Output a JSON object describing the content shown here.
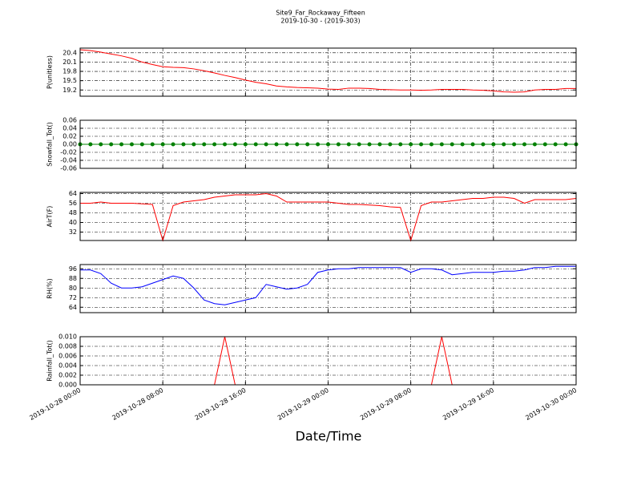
{
  "chart_data": [
    {
      "type": "line",
      "title": "Site9_Far_Rockaway_Fifteen",
      "subtitle": "2019-10-30 - (2019-303)",
      "ylabel": "P(unitless)",
      "x": [
        "2019-10-28 00:00",
        "2019-10-28 01:00",
        "2019-10-28 02:00",
        "2019-10-28 03:00",
        "2019-10-28 04:00",
        "2019-10-28 05:00",
        "2019-10-28 06:00",
        "2019-10-28 07:00",
        "2019-10-28 08:00",
        "2019-10-28 09:00",
        "2019-10-28 10:00",
        "2019-10-28 11:00",
        "2019-10-28 12:00",
        "2019-10-28 13:00",
        "2019-10-28 14:00",
        "2019-10-28 15:00",
        "2019-10-28 16:00",
        "2019-10-28 17:00",
        "2019-10-28 18:00",
        "2019-10-28 19:00",
        "2019-10-28 20:00",
        "2019-10-28 21:00",
        "2019-10-28 22:00",
        "2019-10-28 23:00",
        "2019-10-29 00:00",
        "2019-10-29 01:00",
        "2019-10-29 02:00",
        "2019-10-29 03:00",
        "2019-10-29 04:00",
        "2019-10-29 05:00",
        "2019-10-29 06:00",
        "2019-10-29 07:00",
        "2019-10-29 08:00",
        "2019-10-29 09:00",
        "2019-10-29 10:00",
        "2019-10-29 11:00",
        "2019-10-29 12:00",
        "2019-10-29 13:00",
        "2019-10-29 14:00",
        "2019-10-29 15:00",
        "2019-10-29 16:00",
        "2019-10-29 17:00",
        "2019-10-29 18:00",
        "2019-10-29 19:00",
        "2019-10-29 20:00",
        "2019-10-29 21:00",
        "2019-10-29 22:00",
        "2019-10-29 23:00",
        "2019-10-30 00:00"
      ],
      "values": [
        20.5,
        20.47,
        20.42,
        20.36,
        20.3,
        20.22,
        20.1,
        20.02,
        19.95,
        19.93,
        19.92,
        19.88,
        19.82,
        19.75,
        19.67,
        19.6,
        19.52,
        19.45,
        19.4,
        19.33,
        19.3,
        19.28,
        19.27,
        19.26,
        19.23,
        19.22,
        19.26,
        19.26,
        19.25,
        19.22,
        19.21,
        19.2,
        19.2,
        19.19,
        19.2,
        19.22,
        19.22,
        19.22,
        19.2,
        19.19,
        19.17,
        19.14,
        19.13,
        19.14,
        19.2,
        19.22,
        19.22,
        19.25,
        19.25
      ],
      "color": "#ff0000",
      "markers": false,
      "xlim": [
        "2019-10-28 00:00",
        "2019-10-30 00:00"
      ],
      "xticks": [
        "2019-10-28 00:00",
        "2019-10-28 08:00",
        "2019-10-28 16:00",
        "2019-10-29 00:00",
        "2019-10-29 08:00",
        "2019-10-29 16:00",
        "2019-10-30 00:00"
      ],
      "ylim": [
        19.0,
        20.55
      ],
      "yticks": [
        19.2,
        19.5,
        19.8,
        20.1,
        20.4
      ],
      "grid": true
    },
    {
      "type": "line",
      "ylabel": "Snowfall_Tot()",
      "x": [
        "2019-10-28 00:00",
        "2019-10-28 01:00",
        "2019-10-28 02:00",
        "2019-10-28 03:00",
        "2019-10-28 04:00",
        "2019-10-28 05:00",
        "2019-10-28 06:00",
        "2019-10-28 07:00",
        "2019-10-28 08:00",
        "2019-10-28 09:00",
        "2019-10-28 10:00",
        "2019-10-28 11:00",
        "2019-10-28 12:00",
        "2019-10-28 13:00",
        "2019-10-28 14:00",
        "2019-10-28 15:00",
        "2019-10-28 16:00",
        "2019-10-28 17:00",
        "2019-10-28 18:00",
        "2019-10-28 19:00",
        "2019-10-28 20:00",
        "2019-10-28 21:00",
        "2019-10-28 22:00",
        "2019-10-28 23:00",
        "2019-10-29 00:00",
        "2019-10-29 01:00",
        "2019-10-29 02:00",
        "2019-10-29 03:00",
        "2019-10-29 04:00",
        "2019-10-29 05:00",
        "2019-10-29 06:00",
        "2019-10-29 07:00",
        "2019-10-29 08:00",
        "2019-10-29 09:00",
        "2019-10-29 10:00",
        "2019-10-29 11:00",
        "2019-10-29 12:00",
        "2019-10-29 13:00",
        "2019-10-29 14:00",
        "2019-10-29 15:00",
        "2019-10-29 16:00",
        "2019-10-29 17:00",
        "2019-10-29 18:00",
        "2019-10-29 19:00",
        "2019-10-29 20:00",
        "2019-10-29 21:00",
        "2019-10-29 22:00",
        "2019-10-29 23:00",
        "2019-10-30 00:00"
      ],
      "values": [
        0,
        0,
        0,
        0,
        0,
        0,
        0,
        0,
        0,
        0,
        0,
        0,
        0,
        0,
        0,
        0,
        0,
        0,
        0,
        0,
        0,
        0,
        0,
        0,
        0,
        0,
        0,
        0,
        0,
        0,
        0,
        0,
        0,
        0,
        0,
        0,
        0,
        0,
        0,
        0,
        0,
        0,
        0,
        0,
        0,
        0,
        0,
        0,
        0
      ],
      "color": "#008000",
      "markers": true,
      "xlim": [
        "2019-10-28 00:00",
        "2019-10-30 00:00"
      ],
      "xticks": [
        "2019-10-28 00:00",
        "2019-10-28 08:00",
        "2019-10-28 16:00",
        "2019-10-29 00:00",
        "2019-10-29 08:00",
        "2019-10-29 16:00",
        "2019-10-30 00:00"
      ],
      "ylim": [
        -0.06,
        0.06
      ],
      "yticks": [
        -0.06,
        -0.04,
        -0.02,
        {
          "value": 0,
          "label": "0.00"
        },
        0.02,
        0.04,
        0.06
      ],
      "grid": true
    },
    {
      "type": "line",
      "ylabel": "AirT(F)",
      "x": [
        "2019-10-28 00:00",
        "2019-10-28 01:00",
        "2019-10-28 02:00",
        "2019-10-28 03:00",
        "2019-10-28 04:00",
        "2019-10-28 05:00",
        "2019-10-28 06:00",
        "2019-10-28 07:00",
        "2019-10-28 08:00",
        "2019-10-28 09:00",
        "2019-10-28 10:00",
        "2019-10-28 11:00",
        "2019-10-28 12:00",
        "2019-10-28 13:00",
        "2019-10-28 14:00",
        "2019-10-28 15:00",
        "2019-10-28 16:00",
        "2019-10-28 17:00",
        "2019-10-28 18:00",
        "2019-10-28 19:00",
        "2019-10-28 20:00",
        "2019-10-28 21:00",
        "2019-10-28 22:00",
        "2019-10-28 23:00",
        "2019-10-29 00:00",
        "2019-10-29 01:00",
        "2019-10-29 02:00",
        "2019-10-29 03:00",
        "2019-10-29 04:00",
        "2019-10-29 05:00",
        "2019-10-29 06:00",
        "2019-10-29 07:00",
        "2019-10-29 08:00",
        "2019-10-29 09:00",
        "2019-10-29 10:00",
        "2019-10-29 11:00",
        "2019-10-29 12:00",
        "2019-10-29 13:00",
        "2019-10-29 14:00",
        "2019-10-29 15:00",
        "2019-10-29 16:00",
        "2019-10-29 17:00",
        "2019-10-29 18:00",
        "2019-10-29 19:00",
        "2019-10-29 20:00",
        "2019-10-29 21:00",
        "2019-10-29 22:00",
        "2019-10-29 23:00",
        "2019-10-30 00:00"
      ],
      "values": [
        56,
        56,
        57,
        56,
        56,
        56,
        55.5,
        55,
        25,
        54,
        57,
        58,
        59,
        61,
        62,
        63,
        63,
        63,
        64,
        62,
        57,
        57,
        57,
        57,
        57,
        56,
        55,
        55,
        54.5,
        54,
        53,
        52.5,
        25,
        54,
        57,
        57,
        58,
        59,
        60,
        60,
        61,
        61,
        60,
        56,
        59,
        59,
        59,
        59,
        60
      ],
      "color": "#ff0000",
      "markers": false,
      "xlim": [
        "2019-10-28 00:00",
        "2019-10-30 00:00"
      ],
      "xticks": [
        "2019-10-28 00:00",
        "2019-10-28 08:00",
        "2019-10-28 16:00",
        "2019-10-29 00:00",
        "2019-10-29 08:00",
        "2019-10-29 16:00",
        "2019-10-30 00:00"
      ],
      "ylim": [
        25,
        65
      ],
      "yticks": [
        32,
        40,
        48,
        56,
        64
      ],
      "grid": true
    },
    {
      "type": "line",
      "ylabel": "RH(%)",
      "x": [
        "2019-10-28 00:00",
        "2019-10-28 01:00",
        "2019-10-28 02:00",
        "2019-10-28 03:00",
        "2019-10-28 04:00",
        "2019-10-28 05:00",
        "2019-10-28 06:00",
        "2019-10-28 07:00",
        "2019-10-28 08:00",
        "2019-10-28 09:00",
        "2019-10-28 10:00",
        "2019-10-28 11:00",
        "2019-10-28 12:00",
        "2019-10-28 13:00",
        "2019-10-28 14:00",
        "2019-10-28 15:00",
        "2019-10-28 16:00",
        "2019-10-28 17:00",
        "2019-10-28 18:00",
        "2019-10-28 19:00",
        "2019-10-28 20:00",
        "2019-10-28 21:00",
        "2019-10-28 22:00",
        "2019-10-28 23:00",
        "2019-10-29 00:00",
        "2019-10-29 01:00",
        "2019-10-29 02:00",
        "2019-10-29 03:00",
        "2019-10-29 04:00",
        "2019-10-29 05:00",
        "2019-10-29 06:00",
        "2019-10-29 07:00",
        "2019-10-29 08:00",
        "2019-10-29 09:00",
        "2019-10-29 10:00",
        "2019-10-29 11:00",
        "2019-10-29 12:00",
        "2019-10-29 13:00",
        "2019-10-29 14:00",
        "2019-10-29 15:00",
        "2019-10-29 16:00",
        "2019-10-29 17:00",
        "2019-10-29 18:00",
        "2019-10-29 19:00",
        "2019-10-29 20:00",
        "2019-10-29 21:00",
        "2019-10-29 22:00",
        "2019-10-29 23:00",
        "2019-10-30 00:00"
      ],
      "values": [
        95,
        95,
        92,
        84,
        80,
        80,
        81,
        84,
        87,
        90,
        88,
        80,
        70,
        67,
        66,
        68,
        70,
        72,
        83,
        81,
        79,
        80,
        83,
        93,
        95,
        96,
        96,
        97,
        97,
        97,
        97,
        97,
        93,
        96,
        96,
        95,
        91,
        92,
        93,
        93,
        93,
        94,
        94,
        95,
        97,
        97,
        98,
        98,
        98
      ],
      "color": "#0000ff",
      "markers": false,
      "xlim": [
        "2019-10-28 00:00",
        "2019-10-30 00:00"
      ],
      "xticks": [
        "2019-10-28 00:00",
        "2019-10-28 08:00",
        "2019-10-28 16:00",
        "2019-10-29 00:00",
        "2019-10-29 08:00",
        "2019-10-29 16:00",
        "2019-10-30 00:00"
      ],
      "ylim": [
        59.5,
        99.5
      ],
      "yticks": [
        64,
        72,
        80,
        88,
        96
      ],
      "grid": true
    },
    {
      "type": "line",
      "ylabel": "Rainfall_Tot()",
      "xlabel": "Date/Time",
      "x": [
        "2019-10-28 00:00",
        "2019-10-28 01:00",
        "2019-10-28 02:00",
        "2019-10-28 03:00",
        "2019-10-28 04:00",
        "2019-10-28 05:00",
        "2019-10-28 06:00",
        "2019-10-28 07:00",
        "2019-10-28 08:00",
        "2019-10-28 09:00",
        "2019-10-28 10:00",
        "2019-10-28 11:00",
        "2019-10-28 12:00",
        "2019-10-28 13:00",
        "2019-10-28 14:00",
        "2019-10-28 15:00",
        "2019-10-28 16:00",
        "2019-10-28 17:00",
        "2019-10-28 18:00",
        "2019-10-28 19:00",
        "2019-10-28 20:00",
        "2019-10-28 21:00",
        "2019-10-28 22:00",
        "2019-10-28 23:00",
        "2019-10-29 00:00",
        "2019-10-29 01:00",
        "2019-10-29 02:00",
        "2019-10-29 03:00",
        "2019-10-29 04:00",
        "2019-10-29 05:00",
        "2019-10-29 06:00",
        "2019-10-29 07:00",
        "2019-10-29 08:00",
        "2019-10-29 09:00",
        "2019-10-29 10:00",
        "2019-10-29 11:00",
        "2019-10-29 12:00",
        "2019-10-29 13:00",
        "2019-10-29 14:00",
        "2019-10-29 15:00",
        "2019-10-29 16:00",
        "2019-10-29 17:00",
        "2019-10-29 18:00",
        "2019-10-29 19:00",
        "2019-10-29 20:00",
        "2019-10-29 21:00",
        "2019-10-29 22:00",
        "2019-10-29 23:00",
        "2019-10-30 00:00"
      ],
      "values": [
        0,
        0,
        0,
        0,
        0,
        0,
        0,
        0,
        0,
        0,
        0,
        0,
        0,
        0,
        0.01,
        0,
        0,
        0,
        0,
        0,
        0,
        0,
        0,
        0,
        0,
        0,
        0,
        0,
        0,
        0,
        0,
        0,
        0,
        0,
        0,
        0.01,
        0,
        0,
        0,
        0,
        0,
        0,
        0,
        0,
        0,
        0,
        0,
        0,
        0
      ],
      "color": "#ff0000",
      "markers": false,
      "xlim": [
        "2019-10-28 00:00",
        "2019-10-30 00:00"
      ],
      "xticks": [
        "2019-10-28 00:00",
        "2019-10-28 08:00",
        "2019-10-28 16:00",
        "2019-10-29 00:00",
        "2019-10-29 08:00",
        "2019-10-29 16:00",
        "2019-10-30 00:00"
      ],
      "ylim": [
        0,
        0.01
      ],
      "yticks": [
        {
          "value": 0,
          "label": "0.000"
        },
        {
          "value": 0.002,
          "label": "0.002"
        },
        {
          "value": 0.004,
          "label": "0.004"
        },
        {
          "value": 0.006,
          "label": "0.006"
        },
        {
          "value": 0.008,
          "label": "0.008"
        },
        {
          "value": 0.01,
          "label": "0.010"
        }
      ],
      "grid": true
    }
  ]
}
